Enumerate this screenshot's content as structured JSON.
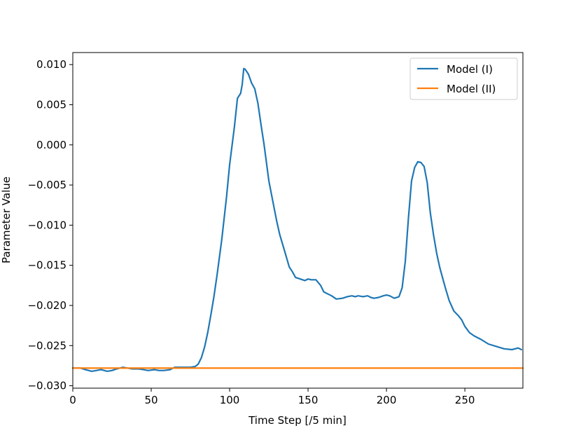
{
  "chart_data": {
    "type": "line",
    "title": "",
    "xlabel": "Time Step [/5 min]",
    "ylabel": "Parameter Value",
    "xlim": [
      0,
      287
    ],
    "ylim": [
      -0.0303,
      0.0115
    ],
    "xticks": [
      0,
      50,
      100,
      150,
      200,
      250
    ],
    "xtick_labels": [
      "0",
      "50",
      "100",
      "150",
      "200",
      "250"
    ],
    "yticks": [
      -0.03,
      -0.025,
      -0.02,
      -0.015,
      -0.01,
      -0.005,
      0.0,
      0.005,
      0.01
    ],
    "ytick_labels": [
      "−0.030",
      "−0.025",
      "−0.020",
      "−0.015",
      "−0.010",
      "−0.005",
      "0.000",
      "0.005",
      "0.010"
    ],
    "grid": false,
    "legend_position": "top-right",
    "series": [
      {
        "name": "Model (I)",
        "color": "#1f77b4",
        "x": [
          0,
          5,
          8,
          12,
          15,
          18,
          22,
          25,
          28,
          32,
          35,
          38,
          42,
          45,
          48,
          52,
          55,
          58,
          62,
          65,
          68,
          72,
          75,
          78,
          80,
          82,
          84,
          86,
          88,
          90,
          92,
          95,
          98,
          100,
          103,
          105,
          107,
          108,
          109,
          110,
          112,
          114,
          116,
          118,
          120,
          122,
          125,
          128,
          130,
          132,
          135,
          138,
          140,
          142,
          145,
          148,
          150,
          152,
          155,
          158,
          160,
          162,
          165,
          168,
          172,
          175,
          178,
          180,
          182,
          185,
          188,
          190,
          192,
          195,
          198,
          200,
          202,
          205,
          208,
          210,
          212,
          214,
          216,
          218,
          220,
          222,
          224,
          226,
          228,
          230,
          232,
          234,
          236,
          238,
          240,
          243,
          246,
          248,
          250,
          253,
          256,
          260,
          265,
          270,
          275,
          280,
          284,
          286
        ],
        "y": [
          -0.0278,
          -0.0278,
          -0.028,
          -0.0282,
          -0.0281,
          -0.028,
          -0.0282,
          -0.0281,
          -0.0279,
          -0.0277,
          -0.0278,
          -0.0279,
          -0.0279,
          -0.028,
          -0.0281,
          -0.028,
          -0.0281,
          -0.0281,
          -0.028,
          -0.0277,
          -0.0277,
          -0.0277,
          -0.0277,
          -0.0276,
          -0.0273,
          -0.0265,
          -0.0252,
          -0.0234,
          -0.0212,
          -0.0189,
          -0.0162,
          -0.0118,
          -0.0065,
          -0.0025,
          0.0022,
          0.0058,
          0.0064,
          0.0075,
          0.0095,
          0.0094,
          0.0088,
          0.0077,
          0.007,
          0.0052,
          0.0025,
          0.0,
          -0.0045,
          -0.0075,
          -0.0095,
          -0.0112,
          -0.0132,
          -0.0152,
          -0.0158,
          -0.0165,
          -0.0167,
          -0.0169,
          -0.0167,
          -0.0168,
          -0.0168,
          -0.0175,
          -0.0183,
          -0.0185,
          -0.0188,
          -0.0192,
          -0.0191,
          -0.0189,
          -0.0188,
          -0.0189,
          -0.0188,
          -0.0189,
          -0.0188,
          -0.019,
          -0.0191,
          -0.019,
          -0.0188,
          -0.0187,
          -0.0188,
          -0.0191,
          -0.0189,
          -0.0178,
          -0.0145,
          -0.0092,
          -0.0045,
          -0.0028,
          -0.0021,
          -0.0022,
          -0.0027,
          -0.0047,
          -0.0085,
          -0.0112,
          -0.0135,
          -0.0153,
          -0.0167,
          -0.0181,
          -0.0194,
          -0.0207,
          -0.0213,
          -0.0218,
          -0.0226,
          -0.0234,
          -0.0238,
          -0.0242,
          -0.0248,
          -0.0251,
          -0.0254,
          -0.0255,
          -0.0253,
          -0.0255
        ]
      },
      {
        "name": "Model (II)",
        "color": "#ff7f0e",
        "x": [
          0,
          287
        ],
        "y": [
          -0.0278,
          -0.0278
        ]
      }
    ]
  }
}
